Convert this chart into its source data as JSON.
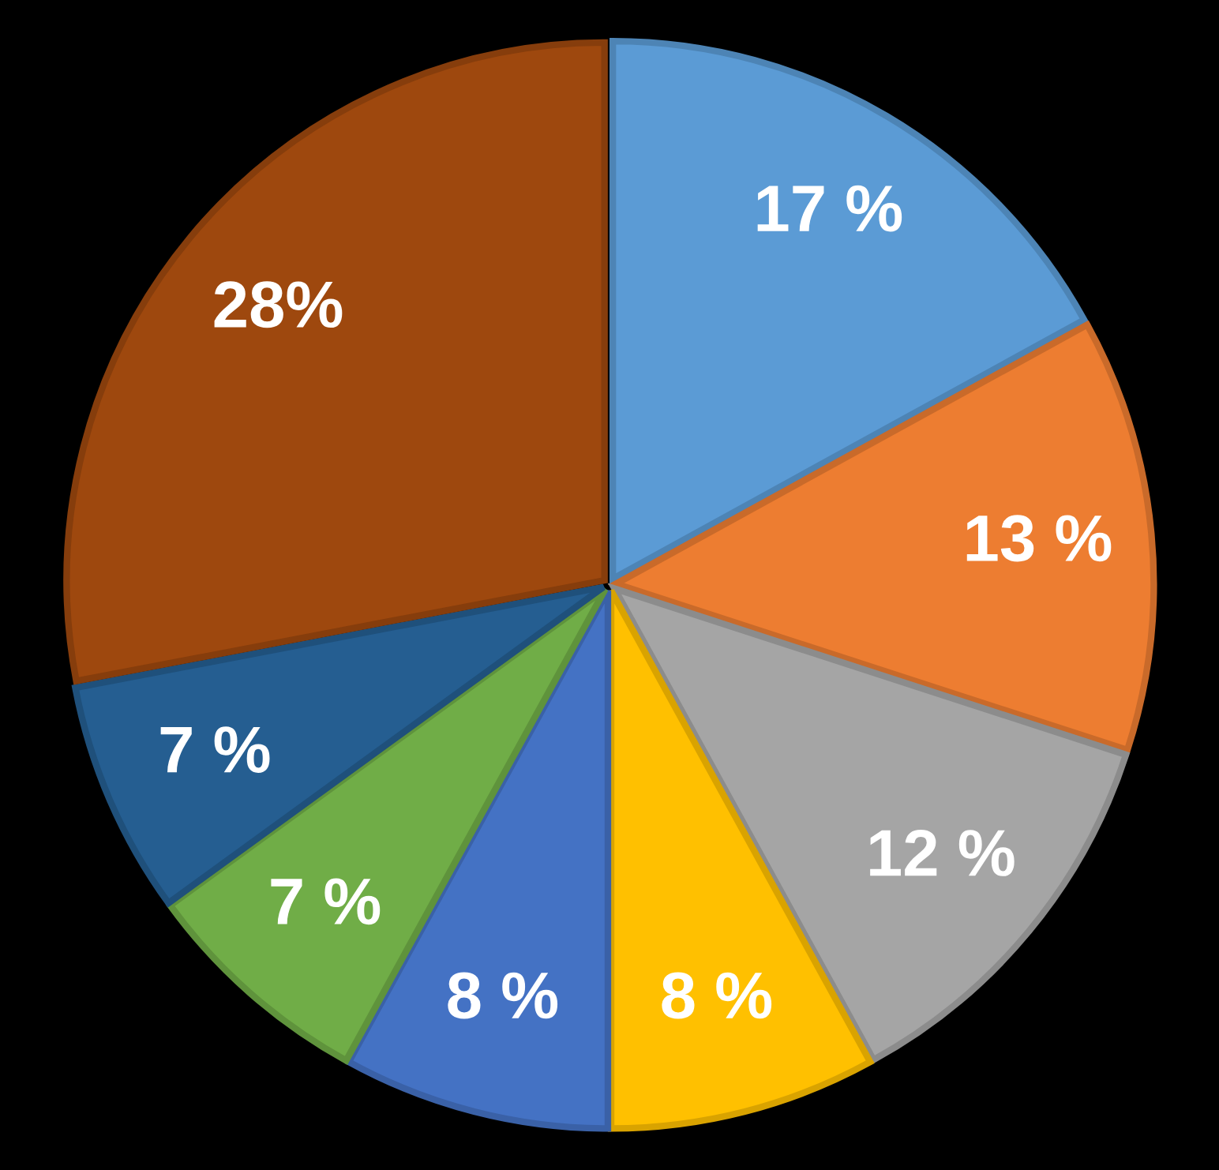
{
  "chart_data": {
    "type": "pie",
    "categories": [
      null,
      null,
      null,
      null,
      null,
      null,
      null,
      null
    ],
    "values": [
      17,
      13,
      12,
      8,
      8,
      7,
      7,
      28
    ],
    "value_labels": [
      "17 %",
      "13 %",
      "12 %",
      "8 %",
      "8 %",
      "7 %",
      "7 %",
      "28%"
    ],
    "colors": [
      "#5b9bd5",
      "#ed7d31",
      "#a5a5a5",
      "#ffc000",
      "#4472c4",
      "#70ad47",
      "#255e91",
      "#9e480e"
    ]
  }
}
